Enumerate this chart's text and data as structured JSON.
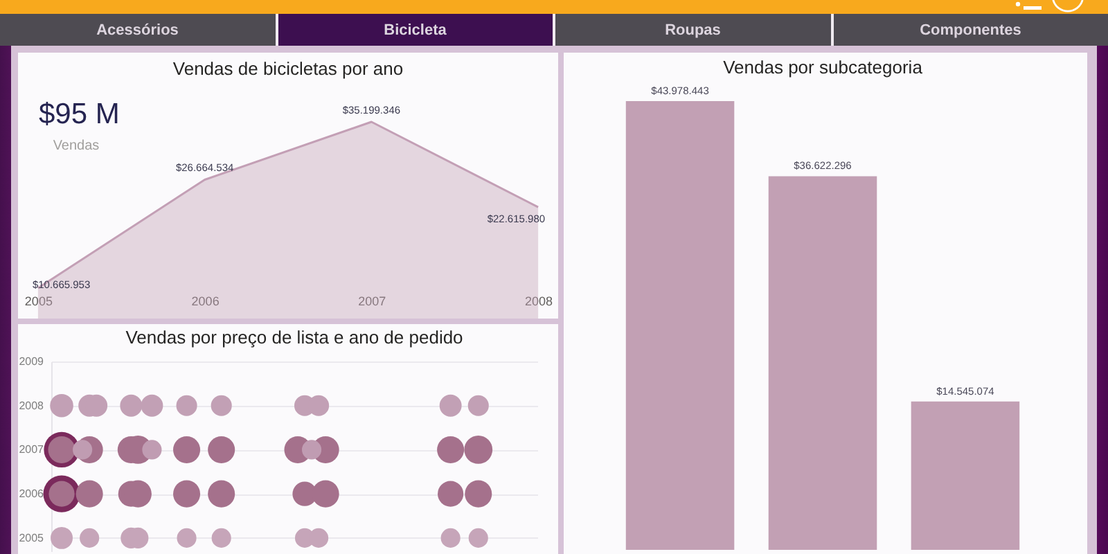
{
  "chart_data": [
    {
      "type": "other",
      "annotations": [
        "Acessórios",
        "Bicicleta",
        "Roupas",
        "Componentes"
      ]
    },
    {
      "type": "area",
      "title": "Vendas de bicicletas por ano",
      "x": [
        2005,
        2006,
        2007,
        2008
      ],
      "values": [
        10665953,
        26664534,
        35199346,
        22615980
      ],
      "value_labels": [
        "$10.665.953",
        "$26.664.534",
        "$35.199.346",
        "$22.615.980"
      ],
      "color": "#c39fb5",
      "xlim": [
        2004.88,
        2008.12
      ],
      "xticks": [
        2005,
        2006,
        2007,
        2008
      ],
      "tick_labels": "x",
      "annotations": [
        "$95 M",
        "Vendas"
      ]
    },
    {
      "type": "bar",
      "title": "Vendas por subcategoria",
      "categories": [
        null,
        null,
        null
      ],
      "values": [
        43978443,
        36622296,
        14545074
      ],
      "value_labels": [
        "$43.978.443",
        "$36.622.296",
        "$14.545.074"
      ],
      "color": "#c2a0b4",
      "tick_labels": false
    },
    {
      "type": "bubble",
      "title": "Vendas por preço de lista e ano de pedido",
      "categories": [
        null,
        null,
        null,
        null,
        null,
        null,
        null,
        null,
        null,
        null,
        null,
        null,
        null,
        null,
        null,
        null,
        null,
        null,
        null,
        null,
        null,
        null,
        null,
        null,
        null,
        null,
        null,
        null,
        null,
        null,
        null,
        null,
        null,
        null,
        null,
        null,
        null,
        null,
        null,
        null,
        null,
        null,
        null,
        null,
        null,
        null,
        null,
        null,
        null,
        null,
        null,
        null,
        null,
        null,
        null,
        null,
        null,
        null,
        null,
        null,
        null,
        null,
        null,
        null,
        null,
        null,
        null,
        null,
        null,
        null
      ],
      "series": [
        {
          "color": "#7b2a5c",
          "values": [
            null,
            2007,
            null,
            null,
            null,
            null,
            null,
            null,
            null,
            null,
            null,
            null,
            null,
            null,
            null,
            null,
            null,
            null,
            null,
            null,
            null,
            null,
            null,
            null,
            null,
            null,
            null,
            null,
            null,
            null,
            null,
            null,
            null,
            null,
            null,
            null,
            null,
            null,
            null,
            null,
            null,
            null,
            null,
            null,
            null,
            null,
            null,
            null,
            null,
            null,
            null,
            null,
            null,
            null,
            null,
            null,
            null,
            null,
            null,
            null,
            null,
            null,
            null,
            null,
            null,
            null,
            null,
            null,
            null,
            null
          ],
          "sizes": [
            null,
            0.93,
            null,
            null,
            null,
            null,
            null,
            null,
            null,
            null,
            null,
            null,
            null,
            null,
            null,
            null,
            null,
            null,
            null,
            null,
            null,
            null,
            null,
            null,
            null,
            null,
            null,
            null,
            null,
            null,
            null,
            null,
            null,
            null,
            null,
            null,
            null,
            null,
            null,
            null,
            null,
            null,
            null,
            null,
            null,
            null,
            null,
            null,
            null,
            null,
            null,
            null,
            null,
            null,
            null,
            null,
            null,
            null,
            null,
            null,
            null,
            null,
            null,
            null,
            null,
            null,
            null,
            null,
            null,
            null
          ]
        },
        {
          "color": "#7b2a5c",
          "values": [
            null,
            2006,
            null,
            null,
            null,
            null,
            null,
            null,
            null,
            null,
            null,
            null,
            null,
            null,
            null,
            null,
            null,
            null,
            null,
            null,
            null,
            null,
            null,
            null,
            null,
            null,
            null,
            null,
            null,
            null,
            null,
            null,
            null,
            null,
            null,
            null,
            null,
            null,
            null,
            null,
            null,
            null,
            null,
            null,
            null,
            null,
            null,
            null,
            null,
            null,
            null,
            null,
            null,
            null,
            null,
            null,
            null,
            null,
            null,
            null,
            null,
            null,
            null,
            null,
            null,
            null,
            null,
            null,
            null,
            null
          ],
          "sizes": [
            null,
            1,
            null,
            null,
            null,
            null,
            null,
            null,
            null,
            null,
            null,
            null,
            null,
            null,
            null,
            null,
            null,
            null,
            null,
            null,
            null,
            null,
            null,
            null,
            null,
            null,
            null,
            null,
            null,
            null,
            null,
            null,
            null,
            null,
            null,
            null,
            null,
            null,
            null,
            null,
            null,
            null,
            null,
            null,
            null,
            null,
            null,
            null,
            null,
            null,
            null,
            null,
            null,
            null,
            null,
            null,
            null,
            null,
            null,
            null,
            null,
            null,
            null,
            null,
            null,
            null,
            null,
            null,
            null,
            null
          ]
        },
        {
          "color": "#c2a0b5",
          "values": [
            null,
            2008,
            null,
            null,
            null,
            2008,
            2008,
            null,
            null,
            null,
            null,
            2008,
            null,
            null,
            2008,
            null,
            null,
            null,
            null,
            2008,
            null,
            null,
            null,
            null,
            2008,
            null,
            null,
            null,
            null,
            null,
            null,
            null,
            null,
            null,
            null,
            null,
            2008,
            null,
            2008,
            null,
            null,
            null,
            null,
            null,
            null,
            null,
            null,
            null,
            null,
            null,
            null,
            null,
            null,
            null,
            null,
            null,
            null,
            2008,
            null,
            null,
            null,
            2008,
            null,
            null,
            null,
            null,
            null,
            null,
            null,
            null
          ],
          "sizes": [
            null,
            0.4,
            null,
            null,
            null,
            0.36,
            0.36,
            null,
            null,
            null,
            null,
            0.36,
            null,
            null,
            0.36,
            null,
            null,
            null,
            null,
            0.32,
            null,
            null,
            null,
            null,
            0.32,
            null,
            null,
            null,
            null,
            null,
            null,
            null,
            null,
            null,
            null,
            null,
            0.32,
            null,
            0.32,
            null,
            null,
            null,
            null,
            null,
            null,
            null,
            null,
            null,
            null,
            null,
            null,
            null,
            null,
            null,
            null,
            null,
            null,
            0.36,
            null,
            null,
            null,
            0.32,
            null,
            null,
            null,
            null,
            null,
            null,
            null,
            null
          ]
        },
        {
          "color": "#a5718c",
          "values": [
            null,
            2007,
            null,
            null,
            null,
            2007,
            null,
            null,
            null,
            null,
            null,
            2007,
            2007,
            null,
            null,
            null,
            null,
            null,
            null,
            2007,
            null,
            null,
            null,
            null,
            2007,
            null,
            null,
            null,
            null,
            null,
            null,
            null,
            null,
            null,
            null,
            2007,
            null,
            null,
            null,
            2007,
            null,
            null,
            null,
            null,
            null,
            null,
            null,
            null,
            null,
            null,
            null,
            null,
            null,
            null,
            null,
            null,
            null,
            2007,
            null,
            null,
            null,
            2007,
            null,
            null,
            null,
            null,
            null,
            null,
            null,
            null
          ],
          "sizes": [
            null,
            0.54,
            null,
            null,
            null,
            0.54,
            null,
            null,
            null,
            null,
            null,
            0.54,
            0.59,
            null,
            null,
            null,
            null,
            null,
            null,
            0.54,
            null,
            null,
            null,
            null,
            0.54,
            null,
            null,
            null,
            null,
            null,
            null,
            null,
            null,
            null,
            null,
            0.54,
            null,
            null,
            null,
            0.54,
            null,
            null,
            null,
            null,
            null,
            null,
            null,
            null,
            null,
            null,
            null,
            null,
            null,
            null,
            null,
            null,
            null,
            0.54,
            null,
            null,
            null,
            0.59,
            null,
            null,
            null,
            null,
            null,
            null,
            null,
            null
          ]
        },
        {
          "color": "#a5718c",
          "values": [
            null,
            2006,
            null,
            null,
            null,
            2006,
            null,
            null,
            null,
            null,
            null,
            2006,
            2006,
            null,
            null,
            null,
            null,
            null,
            null,
            2006,
            null,
            null,
            null,
            null,
            2006,
            null,
            null,
            null,
            null,
            null,
            null,
            null,
            null,
            null,
            null,
            null,
            2006,
            null,
            null,
            2006,
            null,
            null,
            null,
            null,
            null,
            null,
            null,
            null,
            null,
            null,
            null,
            null,
            null,
            null,
            null,
            null,
            null,
            2006,
            null,
            null,
            null,
            2006,
            null,
            null,
            null,
            null,
            null,
            null,
            null,
            null
          ],
          "sizes": [
            null,
            0.49,
            null,
            null,
            null,
            0.54,
            null,
            null,
            null,
            null,
            null,
            0.49,
            0.54,
            null,
            null,
            null,
            null,
            null,
            null,
            0.54,
            null,
            null,
            null,
            null,
            0.54,
            null,
            null,
            null,
            null,
            null,
            null,
            null,
            null,
            null,
            null,
            null,
            0.44,
            null,
            null,
            0.54,
            null,
            null,
            null,
            null,
            null,
            null,
            null,
            null,
            null,
            null,
            null,
            null,
            null,
            null,
            null,
            null,
            null,
            0.49,
            null,
            null,
            null,
            0.54,
            null,
            null,
            null,
            null,
            null,
            null,
            null,
            null
          ]
        },
        {
          "color": "#c6a5b9",
          "values": [
            null,
            2005,
            null,
            null,
            null,
            2005,
            null,
            null,
            null,
            null,
            null,
            2005,
            2005,
            null,
            null,
            null,
            null,
            null,
            null,
            2005,
            null,
            null,
            null,
            null,
            2005,
            null,
            null,
            null,
            null,
            null,
            null,
            null,
            null,
            null,
            null,
            null,
            2005,
            null,
            2005,
            null,
            null,
            null,
            null,
            null,
            null,
            null,
            null,
            null,
            null,
            null,
            null,
            null,
            null,
            null,
            null,
            null,
            null,
            2005,
            null,
            null,
            null,
            2005,
            null,
            null,
            null,
            null,
            null,
            null,
            null,
            null
          ],
          "sizes": [
            null,
            0.36,
            null,
            null,
            null,
            0.28,
            null,
            null,
            null,
            null,
            null,
            0.32,
            0.32,
            null,
            null,
            null,
            null,
            null,
            null,
            0.28,
            null,
            null,
            null,
            null,
            0.28,
            null,
            null,
            null,
            null,
            null,
            null,
            null,
            null,
            null,
            null,
            null,
            0.28,
            null,
            0.28,
            null,
            null,
            null,
            null,
            null,
            null,
            null,
            null,
            null,
            null,
            null,
            null,
            null,
            null,
            null,
            null,
            null,
            null,
            0.28,
            null,
            null,
            null,
            0.28,
            null,
            null,
            null,
            null,
            null,
            null,
            null,
            null
          ]
        },
        {
          "color": "#c09cb2",
          "values": [
            null,
            null,
            null,
            null,
            2007,
            null,
            null,
            null,
            null,
            null,
            null,
            null,
            null,
            null,
            2007,
            null,
            null,
            null,
            null,
            null,
            null,
            null,
            null,
            null,
            null,
            null,
            null,
            null,
            null,
            null,
            null,
            null,
            null,
            null,
            null,
            null,
            null,
            2007,
            null,
            null,
            null,
            null,
            null,
            null,
            null,
            null,
            null,
            null,
            null,
            null,
            null,
            null,
            null,
            null,
            null,
            null,
            null,
            null,
            null,
            null,
            null,
            null,
            null,
            null,
            null,
            null,
            null,
            null,
            null,
            null
          ],
          "sizes": [
            null,
            null,
            null,
            null,
            0.28,
            null,
            null,
            null,
            null,
            null,
            null,
            null,
            null,
            null,
            0.28,
            null,
            null,
            null,
            null,
            null,
            null,
            null,
            null,
            null,
            null,
            null,
            null,
            null,
            null,
            null,
            null,
            null,
            null,
            null,
            null,
            null,
            null,
            0.28,
            null,
            null,
            null,
            null,
            null,
            null,
            null,
            null,
            null,
            null,
            null,
            null,
            null,
            null,
            null,
            null,
            null,
            null,
            null,
            null,
            null,
            null,
            null,
            null,
            null,
            null,
            null,
            null,
            null,
            null,
            null,
            null
          ]
        }
      ],
      "ylim": [
        2004.7,
        2009
      ],
      "yticks": [
        2005,
        2006,
        2007,
        2008,
        2009
      ],
      "grid": "y",
      "tick_labels": "y"
    }
  ]
}
